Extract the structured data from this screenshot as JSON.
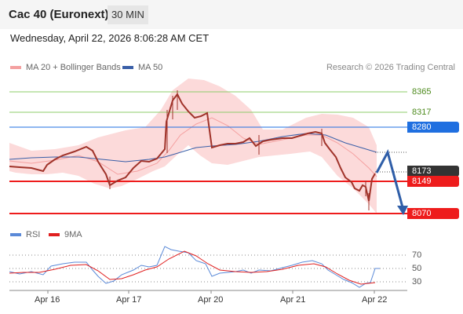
{
  "header": {
    "title": "Cac 40 (Euronext)",
    "timeframe": "30 MIN",
    "datetime": "Wednesday, April 22, 2026 8:06:28 AM CET"
  },
  "legend": {
    "ma20_label": "MA 20 + Bollinger Bands",
    "ma50_label": "MA 50",
    "rsi_label": "RSI",
    "ma9_label": "9MA",
    "research": "Research © 2026 Trading Central"
  },
  "colors": {
    "band_fill": "#fcdada",
    "ma20": "#f4a0a0",
    "ma50": "#3a5fa8",
    "candle": "#a0332a",
    "green_level": "#8ccc6a",
    "blue_level": "#1f6fe0",
    "red_level": "#ee1c1c",
    "rsi": "#5b8ad8",
    "rsi_ma": "#e02020",
    "arrow": "#2f5ea8"
  },
  "levels": {
    "r2": "8365",
    "r1": "8317",
    "pivot": "8280",
    "last": "8173",
    "s1": "8149",
    "s2": "8070"
  },
  "rsi_ticks": [
    "70",
    "50",
    "30"
  ],
  "x_ticks": [
    "Apr 16",
    "Apr 17",
    "Apr 20",
    "Apr 21",
    "Apr 22"
  ]
}
